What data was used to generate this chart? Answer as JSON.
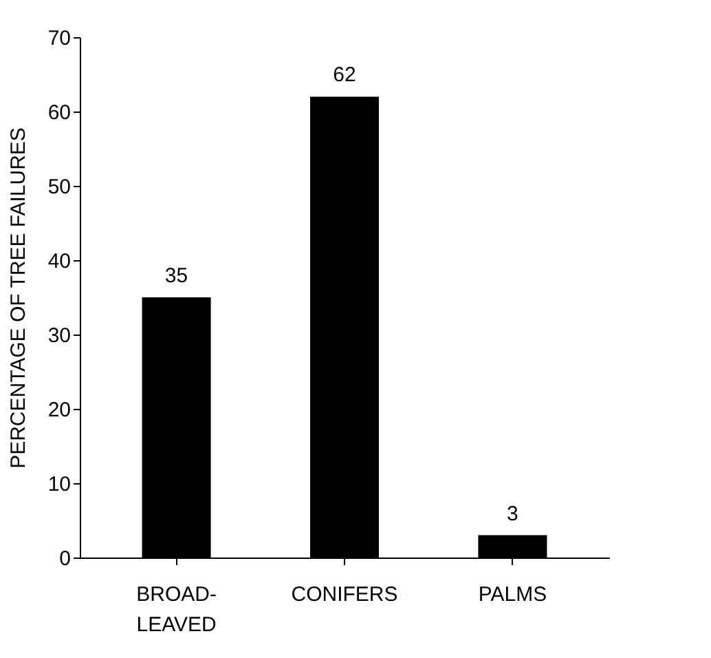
{
  "chart_data": {
    "type": "bar",
    "ylabel": "PERCENTAGE OF TREE FAILURES",
    "categories": [
      "BROAD-\nLEAVED",
      "CONIFERS",
      "PALMS"
    ],
    "values": [
      35,
      62,
      3
    ],
    "color": "#000000",
    "ylim": [
      0,
      70
    ],
    "yticks": [
      0,
      10,
      20,
      30,
      40,
      50,
      60,
      70
    ],
    "grid": false,
    "data_labels": true
  }
}
